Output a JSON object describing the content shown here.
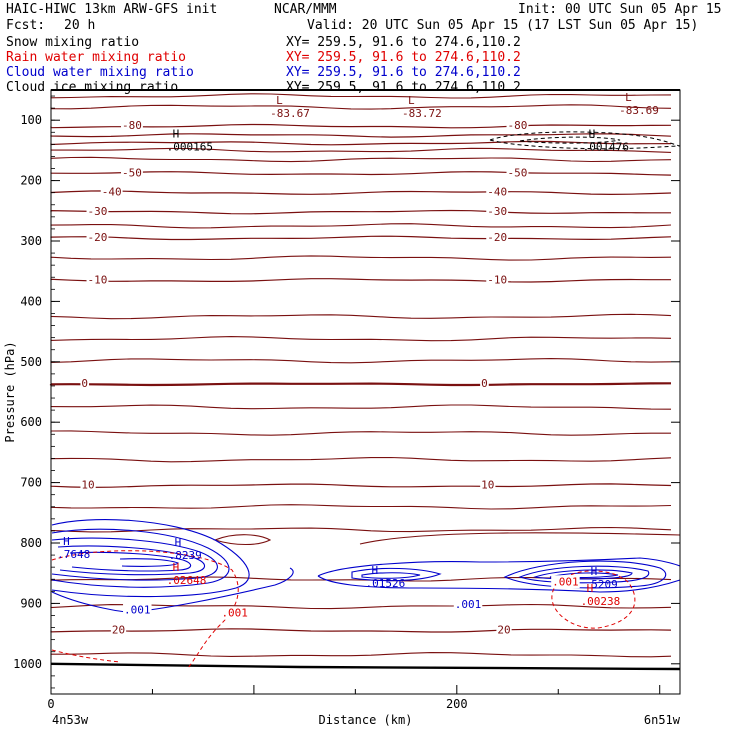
{
  "header": {
    "title": "HAIC-HIWC 13km ARW-GFS init",
    "org": "NCAR/MMM",
    "init": "Init: 00 UTC Sun 05 Apr 15",
    "fcst_label": "Fcst:",
    "fcst_value": "20 h",
    "valid": "Valid: 20 UTC Sun 05 Apr 15 (17 LST Sun 05 Apr 15)"
  },
  "legend": [
    {
      "name": "Snow mixing ratio",
      "xy": "XY= 259.5, 91.6 to 274.6,110.2",
      "color": "#000000"
    },
    {
      "name": "Rain water mixing ratio",
      "xy": "XY= 259.5, 91.6 to 274.6,110.2",
      "color": "#e00000"
    },
    {
      "name": "Cloud water mixing ratio",
      "xy": "XY= 259.5, 91.6 to 274.6,110.2",
      "color": "#0000cc"
    },
    {
      "name": "Cloud ice mixing ratio",
      "xy": "XY= 259.5, 91.6 to 274.6,110.2",
      "color": "#000000"
    }
  ],
  "chart_data": {
    "type": "line",
    "title": "",
    "xlabel": "Distance (km)",
    "ylabel": "Pressure (hPa)",
    "xlim": [
      0,
      310
    ],
    "ylim": [
      1050,
      50
    ],
    "x_ticks": [
      0,
      200
    ],
    "y_ticks": [
      100,
      200,
      300,
      400,
      500,
      600,
      700,
      800,
      900,
      1000
    ],
    "x_end_labels": [
      "4n53w",
      "6n51w"
    ],
    "colors": {
      "temperature": "#7a1010",
      "cloud_water": "#0000cc",
      "rain": "#e00000",
      "snow_ice": "#000000"
    },
    "temperature_contours": [
      {
        "level": -80,
        "pressure": 110,
        "labeled": true
      },
      {
        "level": -70,
        "pressure": 125,
        "labeled": false
      },
      {
        "level": -60,
        "pressure": 138,
        "labeled": false
      },
      {
        "level": -50,
        "pressure": 188,
        "labeled": true
      },
      {
        "level": -40,
        "pressure": 220,
        "labeled": true
      },
      {
        "level": -30,
        "pressure": 252,
        "labeled": true
      },
      {
        "level": -20,
        "pressure": 295,
        "labeled": true
      },
      {
        "level": -10,
        "pressure": 365,
        "labeled": true
      },
      {
        "level": 0,
        "pressure": 537,
        "labeled": true
      },
      {
        "level": 10,
        "pressure": 705,
        "labeled": true
      },
      {
        "level": 20,
        "pressure": 945,
        "labeled": true
      }
    ],
    "extra_temperature_levels_hpa": [
      60,
      78,
      150,
      165,
      275,
      328,
      425,
      462,
      498,
      575,
      618,
      662,
      740,
      778,
      860,
      905,
      985
    ],
    "temperature_labels": [
      {
        "text": "-80",
        "x": 35,
        "p": 110
      },
      {
        "text": "-80",
        "x": 225,
        "p": 110
      },
      {
        "text": "-50",
        "x": 35,
        "p": 188
      },
      {
        "text": "-50",
        "x": 225,
        "p": 188
      },
      {
        "text": "-40",
        "x": 25,
        "p": 220
      },
      {
        "text": "-40",
        "x": 215,
        "p": 220
      },
      {
        "text": "-30",
        "x": 18,
        "p": 252
      },
      {
        "text": "-30",
        "x": 215,
        "p": 252
      },
      {
        "text": "-20",
        "x": 18,
        "p": 295
      },
      {
        "text": "-20",
        "x": 215,
        "p": 295
      },
      {
        "text": "-10",
        "x": 18,
        "p": 365
      },
      {
        "text": "-10",
        "x": 215,
        "p": 365
      },
      {
        "text": "0",
        "x": 15,
        "p": 537
      },
      {
        "text": "0",
        "x": 212,
        "p": 537
      },
      {
        "text": "10",
        "x": 15,
        "p": 705
      },
      {
        "text": "10",
        "x": 212,
        "p": 705
      },
      {
        "text": "20",
        "x": 30,
        "p": 945
      },
      {
        "text": "20",
        "x": 220,
        "p": 945
      }
    ],
    "extrema": [
      {
        "mark": "L",
        "value": "-83.67",
        "x": 108,
        "p": 80,
        "color": "#7a1010"
      },
      {
        "mark": "L",
        "value": "-83.72",
        "x": 173,
        "p": 80,
        "color": "#7a1010"
      },
      {
        "mark": "L",
        "value": "-83.69",
        "x": 280,
        "p": 75,
        "color": "#7a1010"
      },
      {
        "mark": "H",
        "value": ".000165",
        "x": 57,
        "p": 135,
        "color": "#000000"
      },
      {
        "mark": "H",
        "value": ".001476",
        "x": 262,
        "p": 135,
        "color": "#000000"
      },
      {
        "mark": "H",
        "value": ".7648",
        "x": 3,
        "p": 810,
        "color": "#0000cc"
      },
      {
        "mark": "H",
        "value": ".8239",
        "x": 58,
        "p": 812,
        "color": "#0000cc"
      },
      {
        "mark": "H",
        "value": ".02648",
        "x": 57,
        "p": 853,
        "color": "#e00000"
      },
      {
        "mark": "H",
        "value": ".5209",
        "x": 263,
        "p": 860,
        "color": "#0000cc"
      },
      {
        "mark": "H",
        "value": ".00238",
        "x": 261,
        "p": 888,
        "color": "#e00000"
      },
      {
        "mark": "H",
        "value": ".01526",
        "x": 155,
        "p": 858,
        "color": "#0000cc"
      }
    ],
    "contour_value_labels": [
      {
        "text": ".001",
        "x": 36,
        "p": 912,
        "color": "#0000cc"
      },
      {
        "text": ".001",
        "x": 199,
        "p": 903,
        "color": "#0000cc"
      },
      {
        "text": ".001",
        "x": 247,
        "p": 865,
        "color": "#e00000"
      },
      {
        "text": ".001",
        "x": 84,
        "p": 917,
        "color": "#e00000"
      }
    ]
  }
}
